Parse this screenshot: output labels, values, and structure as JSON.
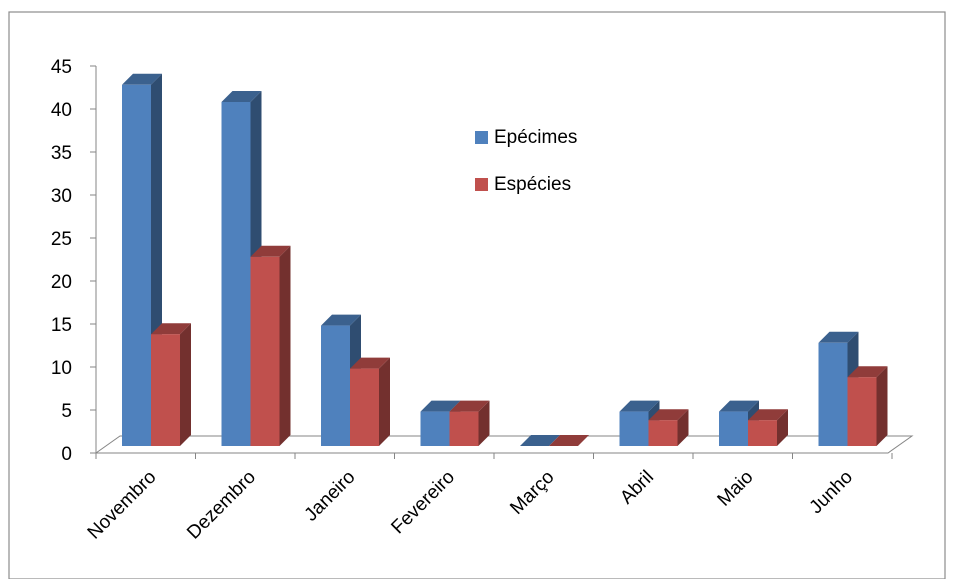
{
  "chart_data": {
    "type": "bar",
    "style": "3d-clustered-column",
    "categories": [
      "Novembro",
      "Dezembro",
      "Janeiro",
      "Fevereiro",
      "Março",
      "Abril",
      "Maio",
      "Junho"
    ],
    "series": [
      {
        "name": "Epécimes",
        "color": "#4F81BD",
        "values": [
          42,
          40,
          14,
          4,
          0,
          4,
          4,
          12
        ]
      },
      {
        "name": "Espécies",
        "color": "#C0504D",
        "values": [
          13,
          22,
          9,
          4,
          0,
          3,
          3,
          8
        ]
      }
    ],
    "ylim": [
      0,
      45
    ],
    "yticks": [
      0,
      5,
      10,
      15,
      20,
      25,
      30,
      35,
      40,
      45
    ],
    "legend_position": "right-inside",
    "grid": false
  }
}
